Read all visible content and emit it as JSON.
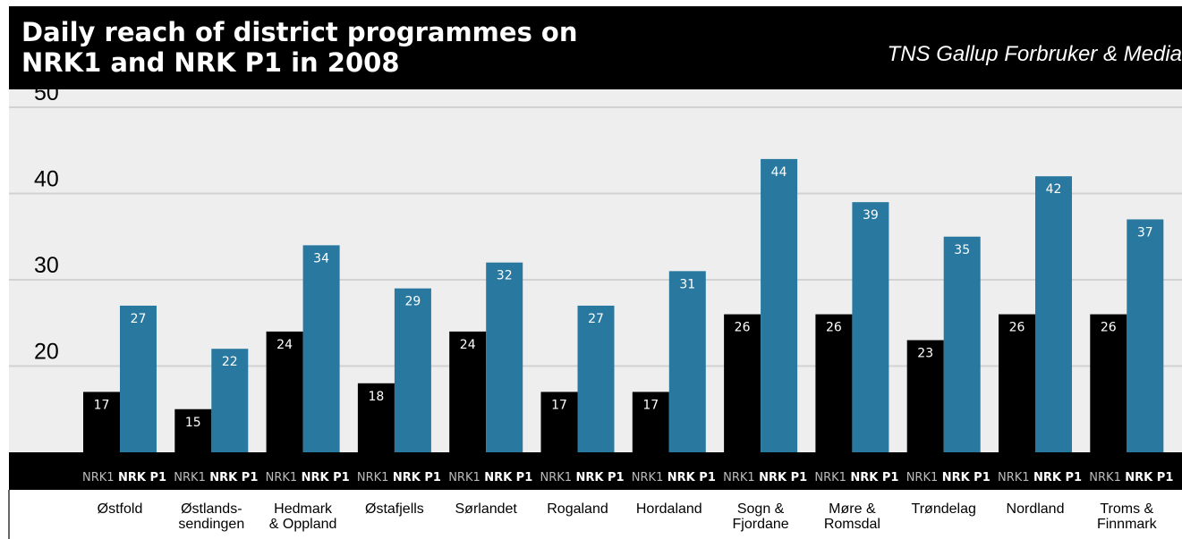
{
  "header": {
    "title_line1": "Daily reach of district programmes on",
    "title_line2": "NRK1 and NRK P1 in 2008",
    "source": "TNS Gallup Forbruker & Media"
  },
  "colors": {
    "nrk1": "#000000",
    "nrkp1": "#2878a0",
    "background": "#eeeeee",
    "header_bg": "#000000",
    "grid": "#d2d2d2"
  },
  "chart_data": {
    "type": "bar",
    "title": "Daily reach of district programmes on NRK1 and NRK P1 in 2008",
    "source": "TNS Gallup Forbruker & Media",
    "categories": [
      [
        "Østfold"
      ],
      [
        "Østlands-",
        "sendingen"
      ],
      [
        "Hedmark",
        "& Oppland"
      ],
      [
        "Østafjells"
      ],
      [
        "Sørlandet"
      ],
      [
        "Rogaland"
      ],
      [
        "Hordaland"
      ],
      [
        "Sogn &",
        "Fjordane"
      ],
      [
        "Møre &",
        "Romsdal"
      ],
      [
        "Trøndelag"
      ],
      [
        "Nordland"
      ],
      [
        "Troms &",
        "Finnmark"
      ]
    ],
    "series": [
      {
        "name": "NRK1",
        "values": [
          17,
          15,
          24,
          18,
          24,
          17,
          17,
          26,
          26,
          23,
          26,
          26
        ]
      },
      {
        "name": "NRK P1",
        "values": [
          27,
          22,
          34,
          29,
          32,
          27,
          31,
          44,
          39,
          35,
          42,
          37
        ]
      }
    ],
    "yticks": [
      20,
      30,
      40,
      50
    ],
    "ylim": [
      10,
      50
    ],
    "xlabel": "",
    "ylabel": "",
    "grid": true,
    "data_labels": true
  }
}
